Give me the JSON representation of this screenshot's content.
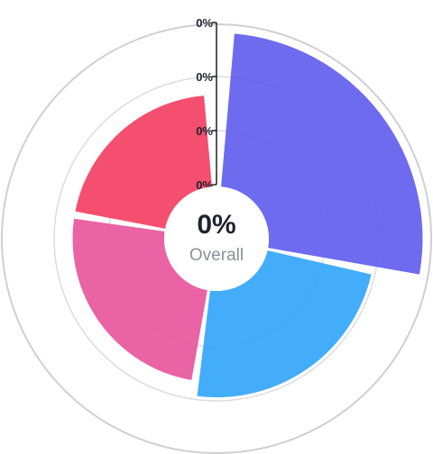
{
  "chart_data": {
    "type": "polar-area",
    "center": {
      "value": "0%",
      "label": "Overall"
    },
    "radial_axis": {
      "tick_labels": [
        "0%",
        "0%",
        "0%",
        "0%"
      ]
    },
    "grid": true,
    "segments": [
      {
        "start_deg": 5,
        "end_deg": 100,
        "value": 0.96,
        "color": "#6562ee"
      },
      {
        "start_deg": 103,
        "end_deg": 187,
        "value": 0.74,
        "color": "#37a8fb"
      },
      {
        "start_deg": 190,
        "end_deg": 278,
        "value": 0.67,
        "color": "#e8599f"
      },
      {
        "start_deg": 281,
        "end_deg": 355,
        "value": 0.67,
        "color": "#f44467"
      }
    ]
  }
}
